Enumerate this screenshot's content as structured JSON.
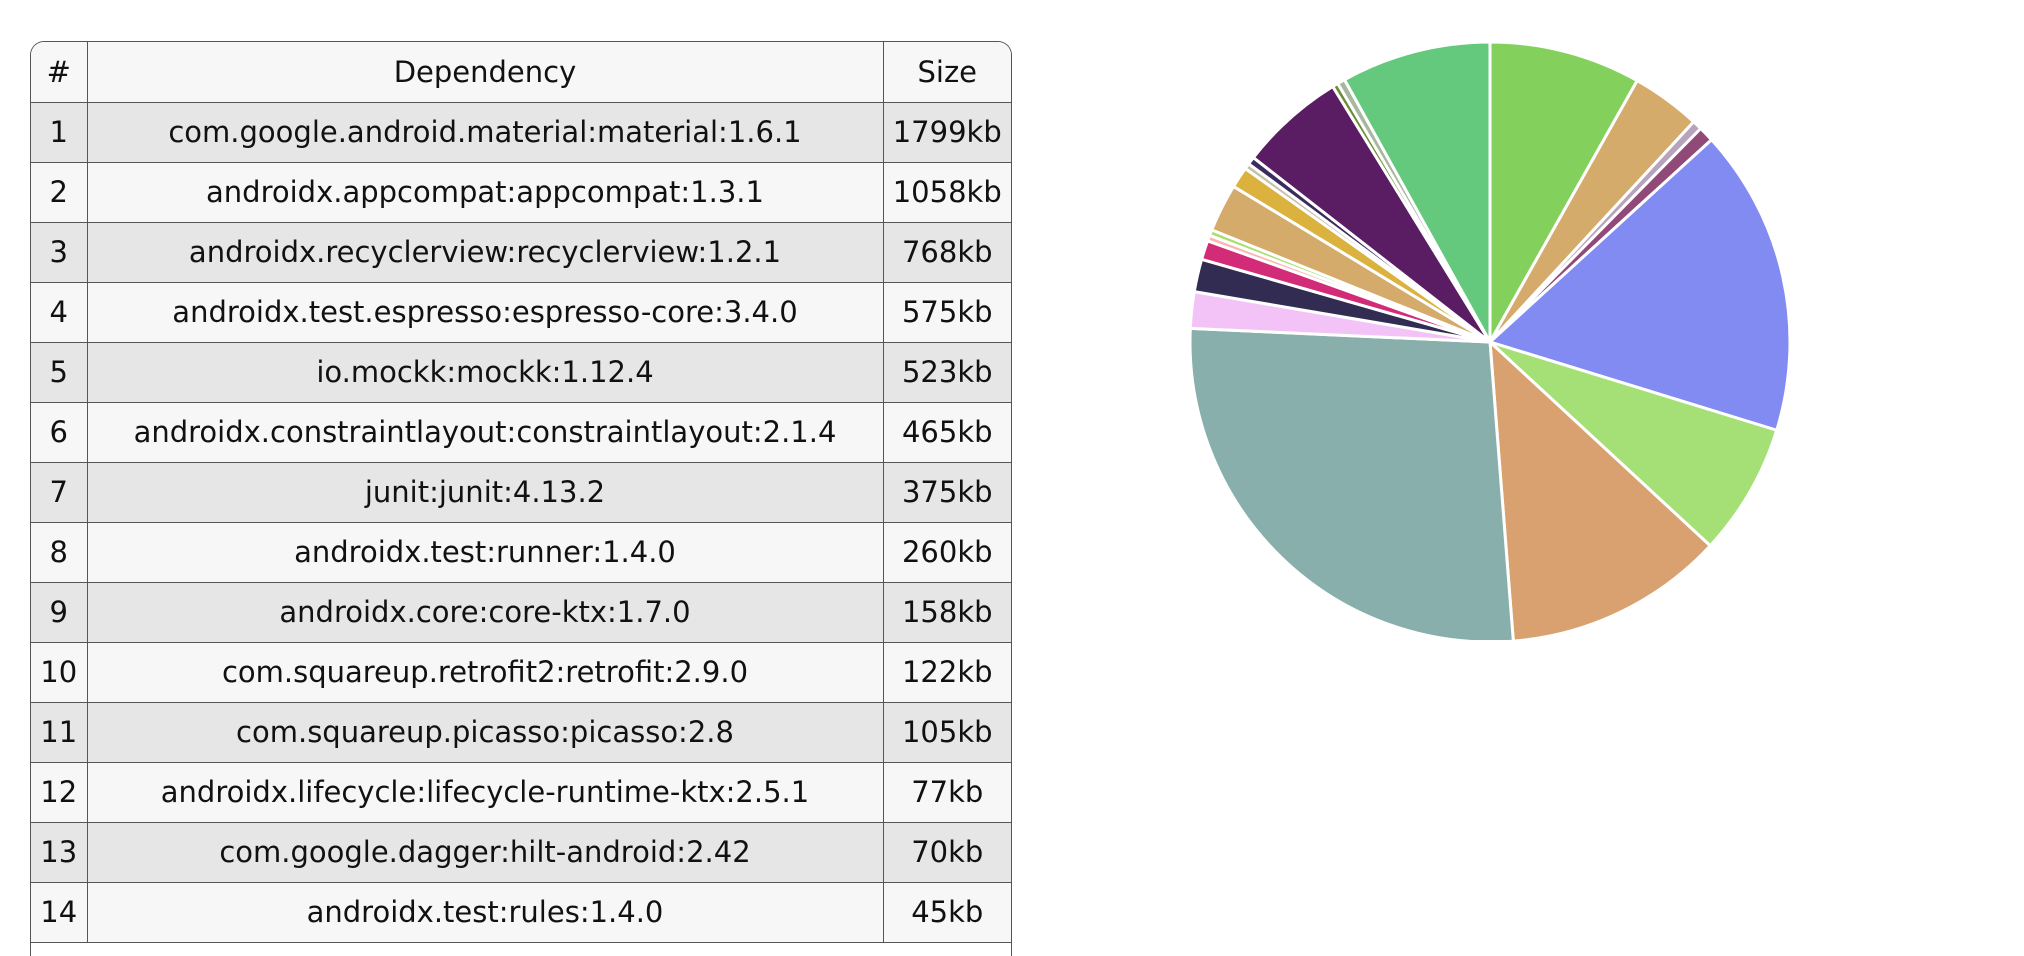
{
  "table": {
    "headers": [
      "#",
      "Dependency",
      "Size"
    ],
    "rows": [
      {
        "num": "1",
        "dependency": "com.google.android.material:material:1.6.1",
        "size": "1799kb"
      },
      {
        "num": "2",
        "dependency": "androidx.appcompat:appcompat:1.3.1",
        "size": "1058kb"
      },
      {
        "num": "3",
        "dependency": "androidx.recyclerview:recyclerview:1.2.1",
        "size": "768kb"
      },
      {
        "num": "4",
        "dependency": "androidx.test.espresso:espresso-core:3.4.0",
        "size": "575kb"
      },
      {
        "num": "5",
        "dependency": "io.mockk:mockk:1.12.4",
        "size": "523kb"
      },
      {
        "num": "6",
        "dependency": "androidx.constraintlayout:constraintlayout:2.1.4",
        "size": "465kb"
      },
      {
        "num": "7",
        "dependency": "junit:junit:4.13.2",
        "size": "375kb"
      },
      {
        "num": "8",
        "dependency": "androidx.test:runner:1.4.0",
        "size": "260kb"
      },
      {
        "num": "9",
        "dependency": "androidx.core:core-ktx:1.7.0",
        "size": "158kb"
      },
      {
        "num": "10",
        "dependency": "com.squareup.retrofit2:retrofit:2.9.0",
        "size": "122kb"
      },
      {
        "num": "11",
        "dependency": "com.squareup.picasso:picasso:2.8",
        "size": "105kb"
      },
      {
        "num": "12",
        "dependency": "androidx.lifecycle:lifecycle-runtime-ktx:2.5.1",
        "size": "77kb"
      },
      {
        "num": "13",
        "dependency": "com.google.dagger:hilt-android:2.42",
        "size": "70kb"
      },
      {
        "num": "14",
        "dependency": "androidx.test:rules:1.4.0",
        "size": "45kb"
      }
    ]
  },
  "chart_data": {
    "type": "pie",
    "title": "",
    "legend": "none",
    "start_angle_deg": -90,
    "direction": "clockwise",
    "slices": [
      {
        "value": 7.9,
        "color": "#84d05c"
      },
      {
        "value": 3.6,
        "color": "#d5ab6b"
      },
      {
        "value": 0.5,
        "color": "#b7a3bc"
      },
      {
        "value": 0.8,
        "color": "#914a78"
      },
      {
        "value": 16.0,
        "color": "#828bf2"
      },
      {
        "value": 6.9,
        "color": "#a5e077"
      },
      {
        "value": 11.5,
        "color": "#d9a16f"
      },
      {
        "value": 26.1,
        "color": "#88afac"
      },
      {
        "value": 1.9,
        "color": "#f3c3f8"
      },
      {
        "value": 1.7,
        "color": "#332c52"
      },
      {
        "value": 1.0,
        "color": "#d22c78"
      },
      {
        "value": 0.3,
        "color": "#ffb3b3"
      },
      {
        "value": 0.3,
        "color": "#a8e070"
      },
      {
        "value": 2.5,
        "color": "#d5ab6b"
      },
      {
        "value": 1.1,
        "color": "#dbb23d"
      },
      {
        "value": 0.3,
        "color": "#c7c1ac"
      },
      {
        "value": 0.4,
        "color": "#3a2c5e"
      },
      {
        "value": 5.5,
        "color": "#5a1c63"
      },
      {
        "value": 0.3,
        "color": "#6e8c34"
      },
      {
        "value": 0.4,
        "color": "#a7b7a0"
      },
      {
        "value": 7.8,
        "color": "#64c97d"
      }
    ]
  }
}
